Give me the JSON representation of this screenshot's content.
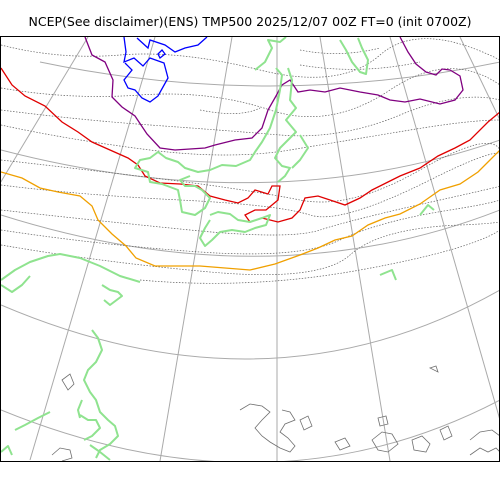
{
  "title": "NCEP(See disclaimer)(ENS) TMP500 2025/12/07 00Z FT=0 (init 0700Z)",
  "colors": {
    "coast": "#8fe38f",
    "isotherm_blue": "#0000ff",
    "isotherm_purple": "#800080",
    "isotherm_red": "#e00000",
    "isotherm_orange": "#f0a000",
    "dotted_contours": "#606060",
    "graticule": "#aaaaaa",
    "border": "#000000"
  },
  "layers": [
    "coastlines",
    "isotherms",
    "dotted-isotherms",
    "graticule",
    "terrain-outlines"
  ]
}
